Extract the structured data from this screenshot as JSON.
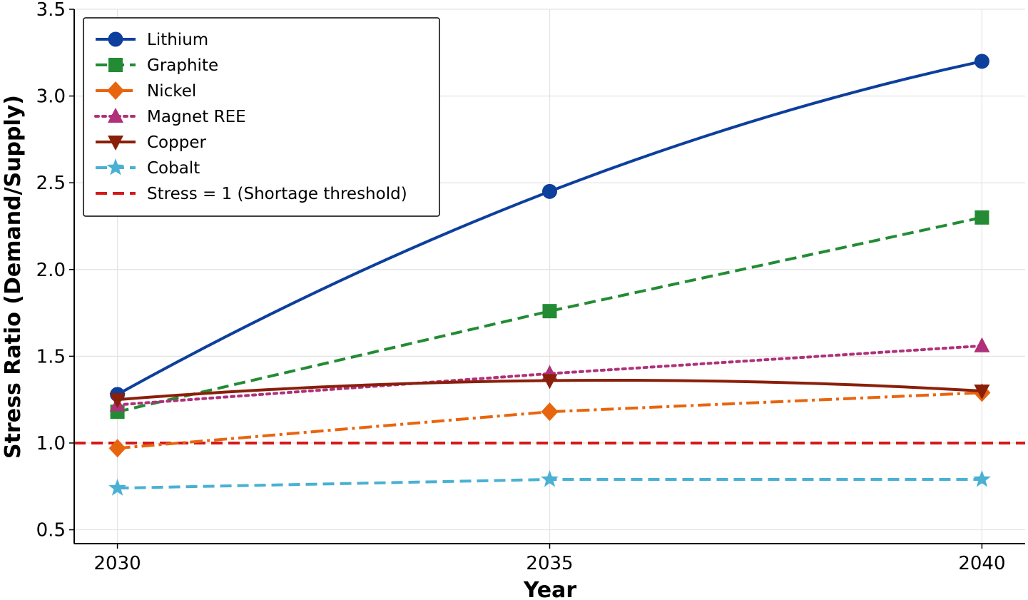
{
  "chart_data": {
    "type": "line",
    "title": "",
    "xlabel": "Year",
    "ylabel": "Stress Ratio (Demand/Supply)",
    "x": [
      2030,
      2035,
      2040
    ],
    "x_ticks": [
      "2030",
      "2035",
      "2040"
    ],
    "y_ticks": [
      "0.5",
      "1.0",
      "1.5",
      "2.0",
      "2.5",
      "3.0",
      "3.5"
    ],
    "ylim": [
      0.42,
      3.5
    ],
    "xlim": [
      2029.5,
      2040.5
    ],
    "grid": true,
    "legend_position": "top-left",
    "series": [
      {
        "name": "Lithium",
        "values": [
          1.28,
          2.45,
          3.2
        ],
        "color": "#0d3f9c",
        "linestyle": "solid",
        "marker": "circle",
        "smooth": true
      },
      {
        "name": "Graphite",
        "values": [
          1.18,
          1.76,
          2.3
        ],
        "color": "#238b34",
        "linestyle": "dashed",
        "marker": "square",
        "smooth": false
      },
      {
        "name": "Nickel",
        "values": [
          0.97,
          1.18,
          1.29
        ],
        "color": "#e8650f",
        "linestyle": "dashdot",
        "marker": "diamond",
        "smooth": false
      },
      {
        "name": "Magnet REE",
        "values": [
          1.22,
          1.4,
          1.56
        ],
        "color": "#b0307a",
        "linestyle": "dotted",
        "marker": "triangle-up",
        "smooth": false
      },
      {
        "name": "Copper",
        "values": [
          1.25,
          1.36,
          1.3
        ],
        "color": "#8a1f0a",
        "linestyle": "solid",
        "marker": "triangle-down",
        "smooth": true
      },
      {
        "name": "Cobalt",
        "values": [
          0.74,
          0.79,
          0.79
        ],
        "color": "#4ab0d4",
        "linestyle": "dashed",
        "marker": "star",
        "smooth": false
      }
    ],
    "threshold": {
      "name": "Stress = 1 (Shortage threshold)",
      "value": 1.0,
      "color": "#d41919",
      "linestyle": "dashed"
    }
  }
}
